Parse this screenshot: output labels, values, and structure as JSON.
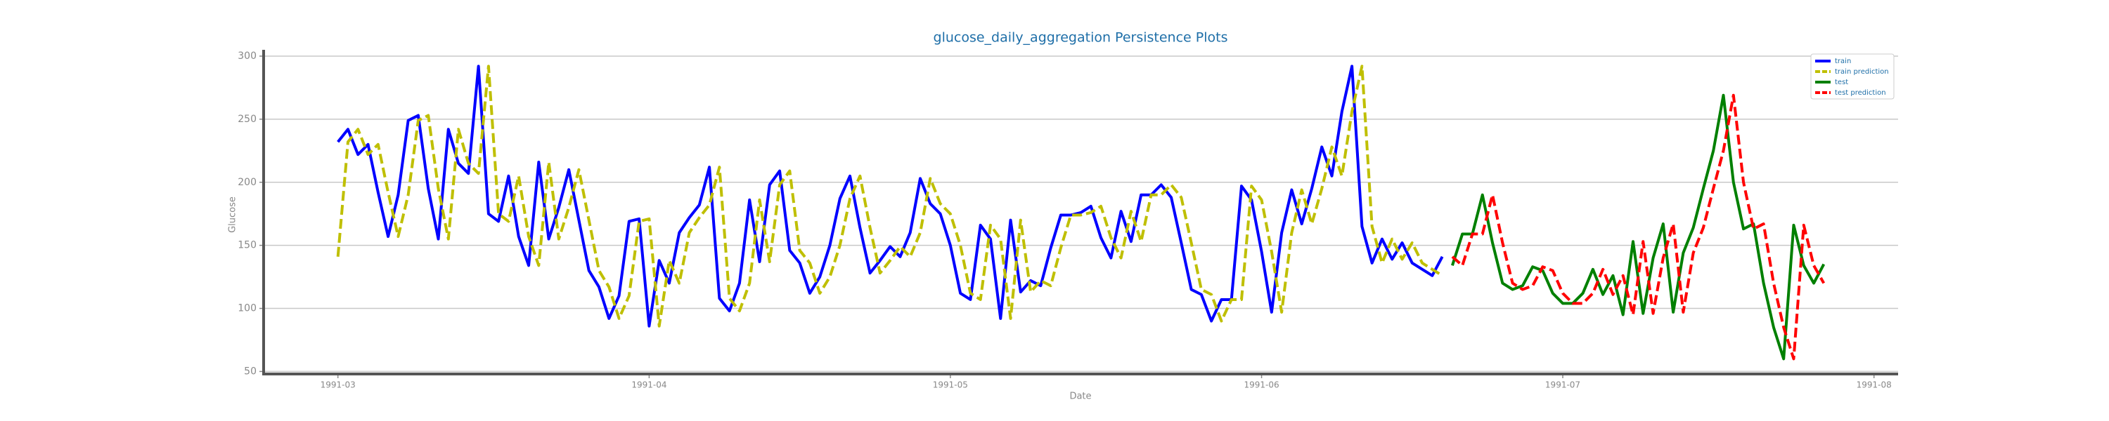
{
  "chart_data": {
    "type": "line",
    "title": "glucose_daily_aggregation Persistence Plots",
    "xlabel": "Date",
    "ylabel": "Glucose",
    "xlim": [
      -7.4,
      155.4
    ],
    "xticks": [
      {
        "value": 0,
        "label": "1991-03"
      },
      {
        "value": 31,
        "label": "1991-04"
      },
      {
        "value": 61,
        "label": "1991-05"
      },
      {
        "value": 92,
        "label": "1991-06"
      },
      {
        "value": 122,
        "label": "1991-07"
      },
      {
        "value": 153,
        "label": "1991-08"
      }
    ],
    "ylim": [
      48,
      305
    ],
    "yticks": [
      50,
      100,
      150,
      200,
      250,
      300
    ],
    "grid": true,
    "legend": "upper right",
    "series": [
      {
        "name": "train",
        "color": "#0000ff",
        "dashed": false,
        "x": [
          0,
          1,
          2,
          3,
          4,
          5,
          6,
          7,
          8,
          9,
          10,
          11,
          12,
          13,
          14,
          15,
          16,
          17,
          18,
          19,
          20,
          21,
          22,
          23,
          24,
          25,
          26,
          27,
          28,
          29,
          30,
          31,
          32,
          33,
          34,
          35,
          36,
          37,
          38,
          39,
          40,
          41,
          42,
          43,
          44,
          45,
          46,
          47,
          48,
          49,
          50,
          51,
          52,
          53,
          54,
          55,
          56,
          57,
          58,
          59,
          60,
          61,
          62,
          63,
          64,
          65,
          66,
          67,
          68,
          69,
          70,
          71,
          72,
          73,
          74,
          75,
          76,
          77,
          78,
          79,
          80,
          81,
          82,
          83,
          84,
          85,
          86,
          87,
          88,
          89,
          90,
          91,
          92,
          93,
          94,
          95,
          96,
          97,
          98,
          99,
          100,
          101,
          102,
          103,
          104,
          105,
          106,
          107,
          108,
          109,
          110
        ],
        "values": [
          232,
          242,
          222,
          230,
          192,
          157,
          190,
          249,
          253,
          195,
          155,
          242,
          215,
          207,
          292,
          175,
          169,
          205,
          157,
          134,
          216,
          155,
          180,
          210,
          170,
          130,
          117,
          92,
          110,
          169,
          171,
          86,
          138,
          120,
          160,
          172,
          182,
          212,
          108,
          98,
          120,
          186,
          137,
          198,
          209,
          146,
          136,
          112,
          125,
          150,
          187,
          205,
          164,
          128,
          138,
          149,
          141,
          160,
          203,
          183,
          175,
          150,
          112,
          107,
          166,
          155,
          92,
          170,
          113,
          122,
          118,
          148,
          174,
          174,
          176,
          181,
          156,
          140,
          177,
          153,
          190,
          190,
          198,
          188,
          152,
          115,
          111,
          90,
          107,
          107,
          197,
          186,
          145,
          97,
          160,
          194,
          167,
          195,
          228,
          205,
          256,
          292,
          165,
          136,
          155,
          139,
          152,
          136,
          131,
          126,
          141
        ]
      },
      {
        "name": "train prediction",
        "color": "#bfbf00",
        "dashed": true,
        "x": [
          0,
          1,
          2,
          3,
          4,
          5,
          6,
          7,
          8,
          9,
          10,
          11,
          12,
          13,
          14,
          15,
          16,
          17,
          18,
          19,
          20,
          21,
          22,
          23,
          24,
          25,
          26,
          27,
          28,
          29,
          30,
          31,
          32,
          33,
          34,
          35,
          36,
          37,
          38,
          39,
          40,
          41,
          42,
          43,
          44,
          45,
          46,
          47,
          48,
          49,
          50,
          51,
          52,
          53,
          54,
          55,
          56,
          57,
          58,
          59,
          60,
          61,
          62,
          63,
          64,
          65,
          66,
          67,
          68,
          69,
          70,
          71,
          72,
          73,
          74,
          75,
          76,
          77,
          78,
          79,
          80,
          81,
          82,
          83,
          84,
          85,
          86,
          87,
          88,
          89,
          90,
          91,
          92,
          93,
          94,
          95,
          96,
          97,
          98,
          99,
          100,
          101,
          102,
          103,
          104,
          105,
          106,
          107,
          108,
          109,
          110
        ],
        "values": [
          141,
          232,
          242,
          222,
          230,
          192,
          157,
          190,
          249,
          253,
          195,
          155,
          242,
          215,
          207,
          292,
          175,
          169,
          205,
          157,
          134,
          216,
          155,
          180,
          210,
          170,
          130,
          117,
          92,
          110,
          169,
          171,
          86,
          138,
          120,
          160,
          172,
          182,
          212,
          108,
          98,
          120,
          186,
          137,
          198,
          209,
          146,
          136,
          112,
          125,
          150,
          187,
          205,
          164,
          128,
          138,
          149,
          141,
          160,
          203,
          183,
          175,
          150,
          112,
          107,
          166,
          155,
          92,
          170,
          113,
          122,
          118,
          148,
          174,
          174,
          176,
          181,
          156,
          140,
          177,
          153,
          190,
          190,
          198,
          188,
          152,
          115,
          111,
          90,
          107,
          107,
          197,
          186,
          145,
          97,
          160,
          194,
          167,
          195,
          228,
          205,
          256,
          292,
          165,
          136,
          155,
          139,
          152,
          136,
          131,
          126
        ]
      },
      {
        "name": "test",
        "color": "#008000",
        "dashed": false,
        "x": [
          111,
          112,
          113,
          114,
          115,
          116,
          117,
          118,
          119,
          120,
          121,
          122,
          123,
          124,
          125,
          126,
          127,
          128,
          129,
          130,
          131,
          132,
          133,
          134,
          135,
          136,
          137,
          138,
          139,
          140,
          141,
          142,
          143,
          144,
          145,
          146,
          147,
          148
        ],
        "values": [
          134,
          159,
          159,
          190,
          152,
          120,
          115,
          118,
          133,
          130,
          112,
          104,
          104,
          112,
          131,
          111,
          126,
          95,
          153,
          96,
          140,
          167,
          97,
          144,
          164,
          195,
          225,
          269,
          200,
          163,
          167,
          120,
          85,
          60,
          166,
          134,
          120,
          135
        ]
      },
      {
        "name": "test prediction",
        "color": "#ff0000",
        "dashed": true,
        "x": [
          111,
          112,
          113,
          114,
          115,
          116,
          117,
          118,
          119,
          120,
          121,
          122,
          123,
          124,
          125,
          126,
          127,
          128,
          129,
          130,
          131,
          132,
          133,
          134,
          135,
          136,
          137,
          138,
          139,
          140,
          141,
          142,
          143,
          144,
          145,
          146,
          147,
          148
        ],
        "values": [
          141,
          134,
          159,
          159,
          190,
          152,
          120,
          115,
          118,
          133,
          130,
          112,
          104,
          104,
          112,
          131,
          111,
          126,
          95,
          153,
          96,
          140,
          167,
          97,
          144,
          164,
          195,
          225,
          269,
          200,
          163,
          167,
          120,
          85,
          60,
          166,
          134,
          120
        ]
      }
    ]
  }
}
